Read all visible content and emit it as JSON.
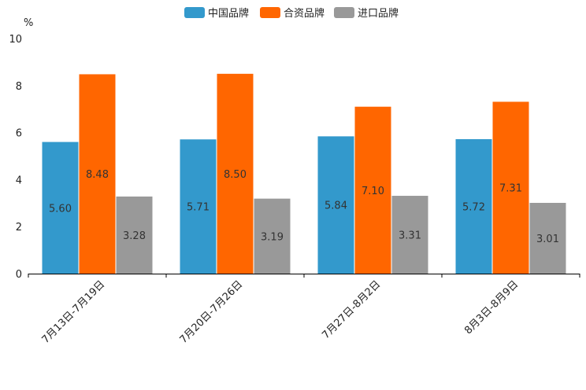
{
  "chart_data": {
    "type": "bar",
    "title": "",
    "unit_label": "%",
    "xlabel": "",
    "ylabel": "",
    "ylim": [
      0,
      10
    ],
    "yticks": [
      0,
      2,
      4,
      6,
      8,
      10
    ],
    "grid": false,
    "legend_position": "top-center",
    "categories": [
      "7月13日-7月19日",
      "7月20日-7月26日",
      "7月27日-8月2日",
      "8月3日-8月9日"
    ],
    "series": [
      {
        "name": "中国品牌",
        "color": "#3399cc",
        "values": [
          5.6,
          5.71,
          5.84,
          5.72
        ]
      },
      {
        "name": "合资品牌",
        "color": "#ff6600",
        "values": [
          8.48,
          8.5,
          7.1,
          7.31
        ]
      },
      {
        "name": "进口品牌",
        "color": "#999999",
        "values": [
          3.28,
          3.19,
          3.31,
          3.01
        ]
      }
    ]
  }
}
